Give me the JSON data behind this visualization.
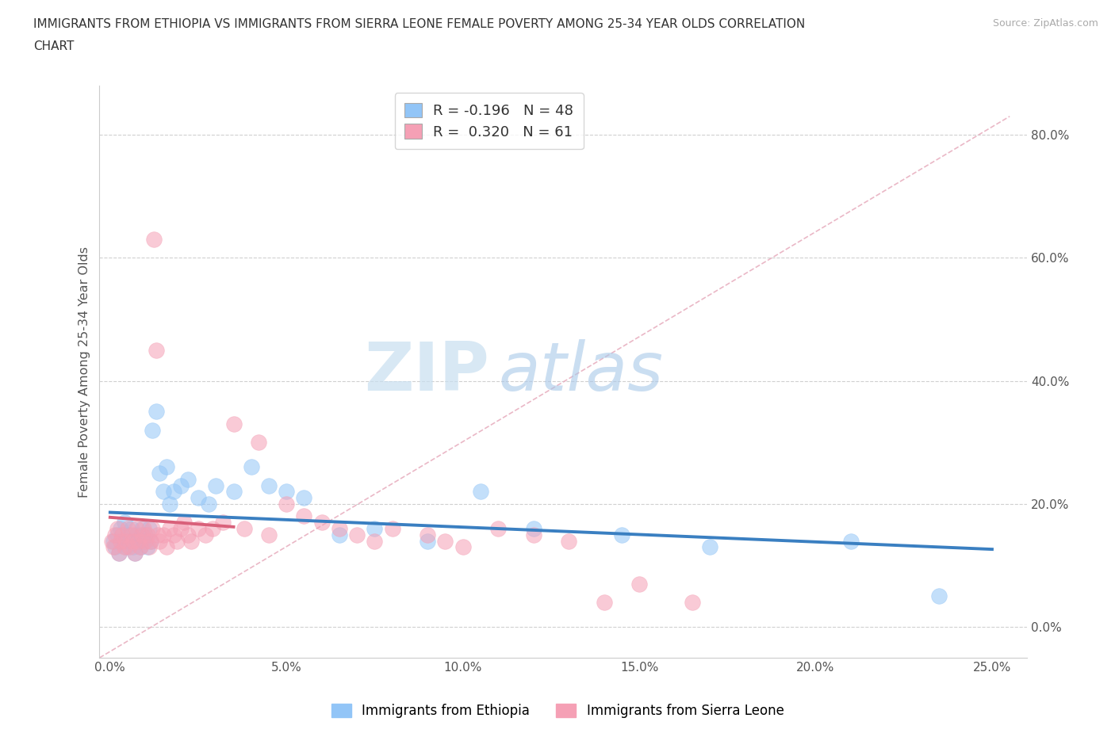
{
  "title_line1": "IMMIGRANTS FROM ETHIOPIA VS IMMIGRANTS FROM SIERRA LEONE FEMALE POVERTY AMONG 25-34 YEAR OLDS CORRELATION",
  "title_line2": "CHART",
  "source_text": "Source: ZipAtlas.com",
  "ylabel": "Female Poverty Among 25-34 Year Olds",
  "xlabel_ticks": [
    "0.0%",
    "5.0%",
    "10.0%",
    "15.0%",
    "20.0%",
    "25.0%"
  ],
  "xlabel_vals": [
    0.0,
    5.0,
    10.0,
    15.0,
    20.0,
    25.0
  ],
  "ylabel_ticks": [
    "0.0%",
    "20.0%",
    "40.0%",
    "60.0%",
    "80.0%"
  ],
  "ylabel_vals": [
    0.0,
    20.0,
    40.0,
    60.0,
    80.0
  ],
  "xlim": [
    -0.3,
    26.0
  ],
  "ylim": [
    -5.0,
    88.0
  ],
  "ethiopia_color": "#92c5f7",
  "sierra_leone_color": "#f5a0b5",
  "ethiopia_line_color": "#3a7fc1",
  "sierra_leone_line_color": "#d9607a",
  "ethiopia_R": -0.196,
  "ethiopia_N": 48,
  "sierra_leone_R": 0.32,
  "sierra_leone_N": 61,
  "diagonal_line_color": "#e8b0c0",
  "watermark_zip": "ZIP",
  "watermark_atlas": "atlas",
  "ethiopia_scatter_x": [
    0.1,
    0.15,
    0.2,
    0.25,
    0.3,
    0.35,
    0.4,
    0.45,
    0.5,
    0.55,
    0.6,
    0.65,
    0.7,
    0.75,
    0.8,
    0.85,
    0.9,
    0.95,
    1.0,
    1.05,
    1.1,
    1.15,
    1.2,
    1.3,
    1.4,
    1.5,
    1.6,
    1.7,
    1.8,
    2.0,
    2.2,
    2.5,
    2.8,
    3.0,
    3.5,
    4.0,
    4.5,
    5.0,
    5.5,
    6.5,
    7.5,
    9.0,
    10.5,
    12.0,
    14.5,
    17.0,
    21.0,
    23.5
  ],
  "ethiopia_scatter_y": [
    14,
    13,
    15,
    12,
    16,
    14,
    17,
    13,
    15,
    14,
    16,
    13,
    12,
    15,
    14,
    13,
    16,
    14,
    15,
    13,
    16,
    14,
    32,
    35,
    25,
    22,
    26,
    20,
    22,
    23,
    24,
    21,
    20,
    23,
    22,
    26,
    23,
    22,
    21,
    15,
    16,
    14,
    22,
    16,
    15,
    13,
    14,
    5
  ],
  "sierra_leone_scatter_x": [
    0.05,
    0.1,
    0.15,
    0.2,
    0.25,
    0.3,
    0.35,
    0.4,
    0.45,
    0.5,
    0.55,
    0.6,
    0.65,
    0.7,
    0.75,
    0.8,
    0.85,
    0.9,
    0.95,
    1.0,
    1.05,
    1.1,
    1.15,
    1.2,
    1.25,
    1.3,
    1.35,
    1.4,
    1.5,
    1.6,
    1.7,
    1.8,
    1.9,
    2.0,
    2.1,
    2.2,
    2.3,
    2.5,
    2.7,
    2.9,
    3.2,
    3.5,
    3.8,
    4.2,
    4.5,
    5.0,
    5.5,
    6.0,
    6.5,
    7.0,
    7.5,
    8.0,
    9.0,
    9.5,
    10.0,
    11.0,
    12.0,
    13.0,
    14.0,
    15.0,
    16.5
  ],
  "sierra_leone_scatter_y": [
    14,
    13,
    15,
    16,
    12,
    14,
    15,
    13,
    14,
    16,
    13,
    15,
    14,
    12,
    16,
    14,
    13,
    15,
    16,
    14,
    15,
    13,
    14,
    16,
    63,
    45,
    15,
    14,
    15,
    13,
    16,
    15,
    14,
    16,
    17,
    15,
    14,
    16,
    15,
    16,
    17,
    33,
    16,
    30,
    15,
    20,
    18,
    17,
    16,
    15,
    14,
    16,
    15,
    14,
    13,
    16,
    15,
    14,
    4,
    7,
    4
  ]
}
